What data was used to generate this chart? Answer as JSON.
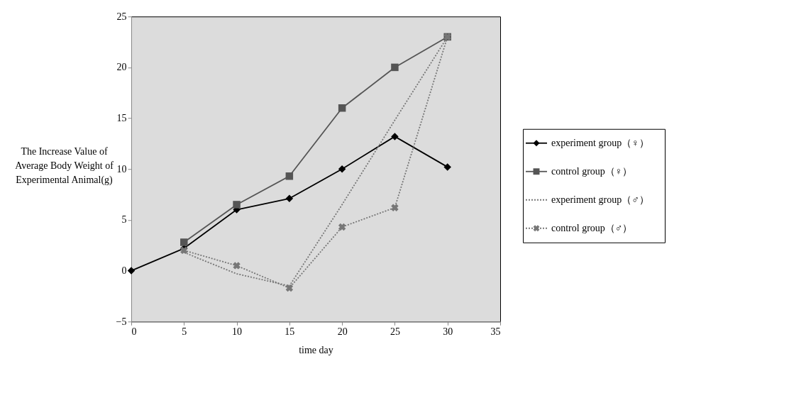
{
  "chart_data": {
    "type": "line",
    "xlabel": "time day",
    "ylabel": "The Increase Value of Average Body Weight of Experimental Animal(g)",
    "x": [
      0,
      5,
      10,
      15,
      20,
      25,
      30
    ],
    "xlim": [
      0,
      35
    ],
    "xticks": [
      0,
      5,
      10,
      15,
      20,
      25,
      30,
      35
    ],
    "ylim": [
      -5,
      25
    ],
    "yticks": [
      -5,
      0,
      5,
      10,
      15,
      20,
      25
    ],
    "grid": false,
    "legend": "right",
    "series": [
      {
        "name": "experiment group（♀）",
        "color": "#000000",
        "marker": "diamond",
        "line_style": "solid",
        "values": [
          0,
          2.2,
          6,
          7.1,
          10,
          13.2,
          10.2
        ]
      },
      {
        "name": "control group（♀）",
        "color": "#555555",
        "marker": "square",
        "line_style": "solid",
        "values": [
          null,
          2.8,
          6.5,
          9.3,
          16,
          20,
          23
        ]
      },
      {
        "name": "experiment group（♂）",
        "color": "#777777",
        "marker": "none",
        "line_style": "dotted",
        "values": [
          null,
          1.8,
          -0.3,
          -1.5,
          6.5,
          14.8,
          23
        ]
      },
      {
        "name": "control group（♂）",
        "color": "#777777",
        "marker": "cross",
        "line_style": "dotted",
        "values": [
          null,
          2,
          0.5,
          -1.7,
          4.3,
          6.2,
          23
        ]
      }
    ]
  }
}
